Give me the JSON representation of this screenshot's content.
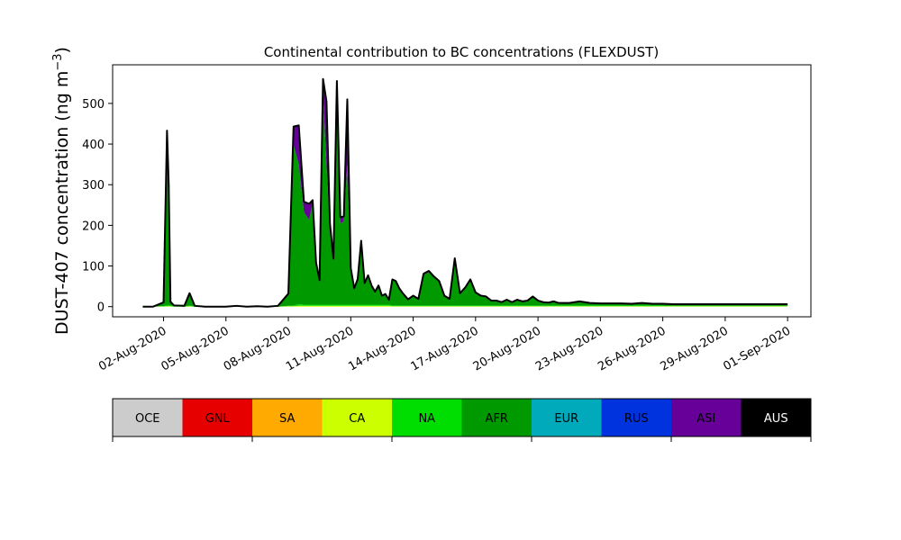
{
  "chart_data": {
    "type": "area",
    "stacked": true,
    "title": "Continental contribution to BC concentrations (FLEXDUST)",
    "ylabel": "DUST-407 concentration (ng m",
    "ylabel_sup": "−3",
    "ylabel_close": ")",
    "xlim": [
      "2020-07-31",
      "2020-09-01"
    ],
    "ylim": [
      -25,
      595
    ],
    "y_ticks": [
      0,
      100,
      200,
      300,
      400,
      500
    ],
    "x_ticks": [
      {
        "date": "2020-08-02",
        "label": "02-Aug-2020"
      },
      {
        "date": "2020-08-05",
        "label": "05-Aug-2020"
      },
      {
        "date": "2020-08-08",
        "label": "08-Aug-2020"
      },
      {
        "date": "2020-08-11",
        "label": "11-Aug-2020"
      },
      {
        "date": "2020-08-14",
        "label": "14-Aug-2020"
      },
      {
        "date": "2020-08-17",
        "label": "17-Aug-2020"
      },
      {
        "date": "2020-08-20",
        "label": "20-Aug-2020"
      },
      {
        "date": "2020-08-23",
        "label": "23-Aug-2020"
      },
      {
        "date": "2020-08-26",
        "label": "26-Aug-2020"
      },
      {
        "date": "2020-08-29",
        "label": "29-Aug-2020"
      },
      {
        "date": "2020-09-01",
        "label": "01-Sep-2020"
      }
    ],
    "grid": false,
    "x_dates": [
      "2020-08-01T00:00",
      "2020-08-01T12:00",
      "2020-08-02T00:00",
      "2020-08-02T04:00",
      "2020-08-02T06:00",
      "2020-08-02T08:00",
      "2020-08-02T12:00",
      "2020-08-03T00:00",
      "2020-08-03T06:00",
      "2020-08-03T12:00",
      "2020-08-04T00:00",
      "2020-08-04T12:00",
      "2020-08-05T00:00",
      "2020-08-05T12:00",
      "2020-08-06T00:00",
      "2020-08-06T12:00",
      "2020-08-07T00:00",
      "2020-08-07T12:00",
      "2020-08-08T00:00",
      "2020-08-08T06:00",
      "2020-08-08T12:00",
      "2020-08-08T18:00",
      "2020-08-09T00:00",
      "2020-08-09T04:00",
      "2020-08-09T08:00",
      "2020-08-09T12:00",
      "2020-08-09T16:00",
      "2020-08-09T20:00",
      "2020-08-10T00:00",
      "2020-08-10T04:00",
      "2020-08-10T08:00",
      "2020-08-10T12:00",
      "2020-08-10T16:00",
      "2020-08-10T20:00",
      "2020-08-11T00:00",
      "2020-08-11T04:00",
      "2020-08-11T08:00",
      "2020-08-11T12:00",
      "2020-08-11T16:00",
      "2020-08-11T20:00",
      "2020-08-12T00:00",
      "2020-08-12T04:00",
      "2020-08-12T08:00",
      "2020-08-12T12:00",
      "2020-08-12T16:00",
      "2020-08-12T20:00",
      "2020-08-13T00:00",
      "2020-08-13T04:00",
      "2020-08-13T08:00",
      "2020-08-13T12:00",
      "2020-08-13T18:00",
      "2020-08-14T00:00",
      "2020-08-14T06:00",
      "2020-08-14T12:00",
      "2020-08-14T18:00",
      "2020-08-15T00:00",
      "2020-08-15T06:00",
      "2020-08-15T12:00",
      "2020-08-15T18:00",
      "2020-08-16T00:00",
      "2020-08-16T06:00",
      "2020-08-16T12:00",
      "2020-08-16T18:00",
      "2020-08-17T00:00",
      "2020-08-17T06:00",
      "2020-08-17T12:00",
      "2020-08-17T18:00",
      "2020-08-18T00:00",
      "2020-08-18T06:00",
      "2020-08-18T12:00",
      "2020-08-18T18:00",
      "2020-08-19T00:00",
      "2020-08-19T06:00",
      "2020-08-19T12:00",
      "2020-08-19T18:00",
      "2020-08-20T00:00",
      "2020-08-20T06:00",
      "2020-08-20T12:00",
      "2020-08-20T18:00",
      "2020-08-21T00:00",
      "2020-08-21T12:00",
      "2020-08-22T00:00",
      "2020-08-22T12:00",
      "2020-08-23T00:00",
      "2020-08-23T12:00",
      "2020-08-24T00:00",
      "2020-08-24T12:00",
      "2020-08-25T00:00",
      "2020-08-25T12:00",
      "2020-08-26T00:00",
      "2020-08-26T12:00",
      "2020-08-27T00:00",
      "2020-08-27T12:00",
      "2020-08-28T00:00",
      "2020-08-28T12:00",
      "2020-08-29T00:00",
      "2020-08-29T12:00",
      "2020-08-30T00:00",
      "2020-08-30T12:00",
      "2020-08-31T00:00",
      "2020-08-31T12:00",
      "2020-09-01T00:00"
    ],
    "series": [
      {
        "name": "OCE",
        "color": "#cccccc",
        "values": [
          0,
          0,
          0,
          0,
          0,
          0,
          0,
          0,
          0,
          0,
          0,
          0,
          0,
          0,
          0,
          0,
          0,
          0,
          0,
          0,
          0,
          0,
          0,
          0,
          0,
          0,
          0,
          0,
          0,
          0,
          0,
          0,
          0,
          0,
          0,
          0,
          0,
          0,
          0,
          0,
          0,
          0,
          0,
          0,
          0,
          0,
          0,
          0,
          0,
          0,
          0,
          0,
          0,
          0,
          0,
          0,
          0,
          0,
          0,
          0,
          0,
          0,
          0,
          0,
          0,
          0,
          0,
          0,
          0,
          0,
          0,
          0,
          0,
          0,
          0,
          0,
          0,
          0,
          0,
          0,
          0,
          0,
          0,
          0,
          0,
          0,
          0,
          0,
          0,
          0,
          0,
          0,
          0,
          0,
          0,
          0,
          0,
          0,
          0,
          0,
          0,
          0
        ]
      },
      {
        "name": "GNL",
        "color": "#e60000",
        "values": [
          0,
          0,
          0,
          0,
          0,
          0,
          0,
          0,
          0,
          0,
          0,
          0,
          0,
          0,
          0,
          0,
          0,
          0,
          0,
          0,
          0,
          0,
          0,
          0,
          0,
          0,
          0,
          0,
          0,
          0,
          0,
          0,
          0,
          0,
          0,
          0,
          0,
          0,
          0,
          0,
          0,
          0,
          0,
          0,
          0,
          0,
          0,
          0,
          0,
          0,
          0,
          0,
          0,
          0,
          0,
          0,
          0,
          0,
          0,
          0,
          0,
          0,
          0,
          0,
          0,
          0,
          0,
          0,
          0,
          0,
          0,
          0,
          0,
          0,
          0,
          0,
          0,
          0,
          0,
          0,
          0,
          0,
          0,
          0,
          0,
          0,
          0,
          0,
          0,
          0,
          0,
          0,
          0,
          0,
          0,
          0,
          0,
          0,
          0,
          0,
          0,
          0
        ]
      },
      {
        "name": "SA",
        "color": "#ffaa00",
        "values": [
          0,
          0,
          0,
          0,
          0,
          0,
          0,
          0,
          0,
          0,
          0,
          0,
          0,
          0,
          0,
          0,
          0,
          0,
          0,
          0,
          0,
          0,
          0,
          0,
          0,
          0,
          0,
          0,
          0,
          0,
          0,
          0,
          0,
          0,
          0,
          0,
          0,
          0,
          0,
          0,
          0,
          0,
          0,
          0,
          0,
          0,
          0,
          0,
          0,
          0,
          0,
          0,
          0,
          0,
          0,
          0,
          0,
          0,
          0,
          0,
          0,
          0,
          0,
          0,
          0,
          0,
          0,
          0,
          0,
          0,
          0,
          0,
          0,
          0,
          0,
          0,
          0,
          0,
          0,
          0,
          0,
          0,
          0,
          0,
          0,
          0,
          0,
          0,
          0,
          0,
          0,
          0,
          0,
          0,
          0,
          0,
          0,
          0,
          0,
          0,
          0,
          0
        ]
      },
      {
        "name": "CA",
        "color": "#ccff00",
        "values": [
          0,
          0,
          0.5,
          1,
          1,
          1,
          0,
          0,
          1,
          0,
          0,
          0,
          0,
          0,
          0,
          0,
          0,
          0,
          1,
          1,
          2,
          2,
          2,
          2,
          2,
          2,
          2,
          2,
          2,
          2,
          2,
          2,
          2,
          2,
          2,
          2,
          2,
          2,
          2,
          2,
          2,
          2,
          2,
          2,
          2,
          2,
          1,
          1,
          1,
          1,
          1,
          1,
          1,
          1,
          1,
          1,
          1,
          1,
          1,
          1,
          1,
          1,
          1,
          1,
          1,
          1,
          1,
          1,
          1,
          1,
          1,
          1,
          1,
          1,
          1,
          1,
          1,
          1,
          1,
          1,
          1,
          1,
          1,
          1,
          1,
          1,
          1,
          1,
          1,
          1,
          1,
          1,
          1,
          1,
          1,
          1,
          1,
          1,
          1,
          1,
          1,
          1
        ]
      },
      {
        "name": "NA",
        "color": "#00dd00",
        "values": [
          0,
          0,
          1,
          2,
          3,
          2,
          1,
          0,
          2,
          0,
          0,
          0,
          0,
          0,
          0,
          0,
          0,
          0,
          1,
          2,
          4,
          3,
          3,
          3,
          3,
          3,
          3,
          3,
          3,
          3,
          3,
          3,
          3,
          3,
          3,
          3,
          3,
          3,
          3,
          3,
          3,
          3,
          3,
          3,
          3,
          3,
          2,
          2,
          2,
          2,
          2,
          2,
          2,
          2,
          2,
          2,
          2,
          2,
          2,
          2,
          2,
          2,
          2,
          2,
          2,
          2,
          2,
          2,
          2,
          2,
          2,
          2,
          2,
          2,
          2,
          2,
          2,
          2,
          2,
          2,
          2,
          2,
          2,
          2,
          2,
          2,
          2,
          2,
          2,
          2,
          1,
          1,
          1,
          1,
          1,
          1,
          1,
          1,
          1,
          1,
          1,
          1
        ]
      },
      {
        "name": "AFR",
        "color": "#009900",
        "values": [
          0,
          0,
          8,
          375,
          260,
          8,
          2,
          2,
          28,
          2,
          0,
          0,
          0,
          2,
          0,
          1,
          0,
          2,
          28,
          395,
          345,
          228,
          208,
          252,
          95,
          55,
          515,
          345,
          178,
          108,
          490,
          200,
          205,
          345,
          80,
          37,
          60,
          145,
          50,
          68,
          45,
          30,
          45,
          20,
          24,
          10,
          62,
          58,
          40,
          28,
          13,
          22,
          14,
          75,
          82,
          68,
          58,
          22,
          14,
          112,
          28,
          42,
          62,
          30,
          22,
          20,
          10,
          10,
          6,
          12,
          6,
          12,
          8,
          10,
          20,
          10,
          6,
          5,
          8,
          4,
          4,
          8,
          4,
          3,
          3,
          3,
          2,
          4,
          2,
          2,
          2,
          2,
          2,
          2,
          2,
          2,
          2,
          2,
          2,
          2,
          2,
          2
        ]
      },
      {
        "name": "EUR",
        "color": "#00aabb",
        "values": [
          0,
          0,
          0,
          0,
          0,
          0,
          0,
          0,
          0,
          0,
          0,
          0,
          0,
          0,
          0,
          0,
          0,
          0,
          0,
          0,
          0,
          0,
          0,
          0,
          0,
          0,
          0,
          0,
          0,
          0,
          0,
          0,
          0,
          0,
          0,
          0,
          0,
          0,
          0,
          0,
          0,
          0,
          0,
          0,
          0,
          0,
          0,
          0,
          0,
          0,
          0,
          0,
          0,
          0,
          0,
          0,
          0,
          0,
          0,
          0,
          0,
          0,
          0,
          0,
          0,
          0,
          0,
          0,
          0,
          0,
          0,
          0,
          0,
          0,
          0,
          0,
          0,
          0,
          0,
          0,
          0,
          0,
          0,
          0,
          0,
          0,
          0,
          0,
          0,
          0,
          0,
          0,
          0,
          0,
          0,
          0,
          0,
          0,
          0,
          0,
          0,
          0
        ]
      },
      {
        "name": "RUS",
        "color": "#0033dd",
        "values": [
          0,
          0,
          0,
          0,
          0,
          0,
          0,
          0,
          0,
          0,
          0,
          0,
          0,
          0,
          0,
          0,
          0,
          0,
          0,
          0,
          0,
          0,
          0,
          0,
          0,
          0,
          0,
          0,
          0,
          0,
          0,
          0,
          0,
          0,
          0,
          0,
          0,
          0,
          0,
          0,
          0,
          0,
          0,
          0,
          0,
          0,
          0,
          0,
          0,
          0,
          0,
          0,
          0,
          0,
          0,
          0,
          0,
          0,
          0,
          0,
          0,
          0,
          0,
          0,
          0,
          0,
          0,
          0,
          0,
          0,
          0,
          0,
          0,
          0,
          0,
          0,
          0,
          0,
          0,
          0,
          0,
          0,
          0,
          0,
          0,
          0,
          0,
          0,
          0,
          0,
          0,
          0,
          0,
          0,
          0,
          0,
          0,
          0,
          0,
          0,
          0,
          0
        ]
      },
      {
        "name": "ASI",
        "color": "#660099",
        "values": [
          0,
          0,
          1,
          55,
          35,
          1,
          0,
          0,
          2,
          0,
          0,
          0,
          0,
          0,
          0,
          0,
          0,
          0,
          2,
          45,
          95,
          25,
          40,
          5,
          8,
          5,
          40,
          155,
          22,
          5,
          60,
          15,
          12,
          160,
          10,
          3,
          3,
          12,
          3,
          4,
          2,
          2,
          2,
          2,
          2,
          2,
          2,
          2,
          2,
          2,
          2,
          2,
          2,
          3,
          3,
          3,
          2,
          2,
          2,
          4,
          2,
          2,
          2,
          2,
          2,
          2,
          2,
          2,
          2,
          2,
          2,
          2,
          2,
          2,
          2,
          2,
          2,
          2,
          2,
          2,
          2,
          2,
          2,
          2,
          2,
          2,
          2,
          2,
          2,
          2,
          2,
          2,
          2,
          2,
          2,
          2,
          2,
          2,
          2,
          2,
          2,
          2
        ]
      },
      {
        "name": "AUS",
        "color": "#000000",
        "values": [
          0,
          0,
          0,
          0,
          0,
          0,
          0,
          0,
          0,
          0,
          0,
          0,
          0,
          0,
          0,
          0,
          0,
          0,
          0,
          0,
          0,
          0,
          0,
          0,
          0,
          0,
          0,
          0,
          0,
          0,
          0,
          0,
          0,
          0,
          0,
          0,
          0,
          0,
          0,
          0,
          0,
          0,
          0,
          0,
          0,
          0,
          0,
          0,
          0,
          0,
          0,
          0,
          0,
          0,
          0,
          0,
          0,
          0,
          0,
          0,
          0,
          0,
          0,
          0,
          0,
          0,
          0,
          0,
          0,
          0,
          0,
          0,
          0,
          0,
          0,
          0,
          0,
          0,
          0,
          0,
          0,
          0,
          0,
          0,
          0,
          0,
          0,
          0,
          0,
          0,
          0,
          0,
          0,
          0,
          0,
          0,
          0,
          0,
          0,
          0,
          0,
          0
        ]
      }
    ],
    "total_line_color": "#000000"
  }
}
